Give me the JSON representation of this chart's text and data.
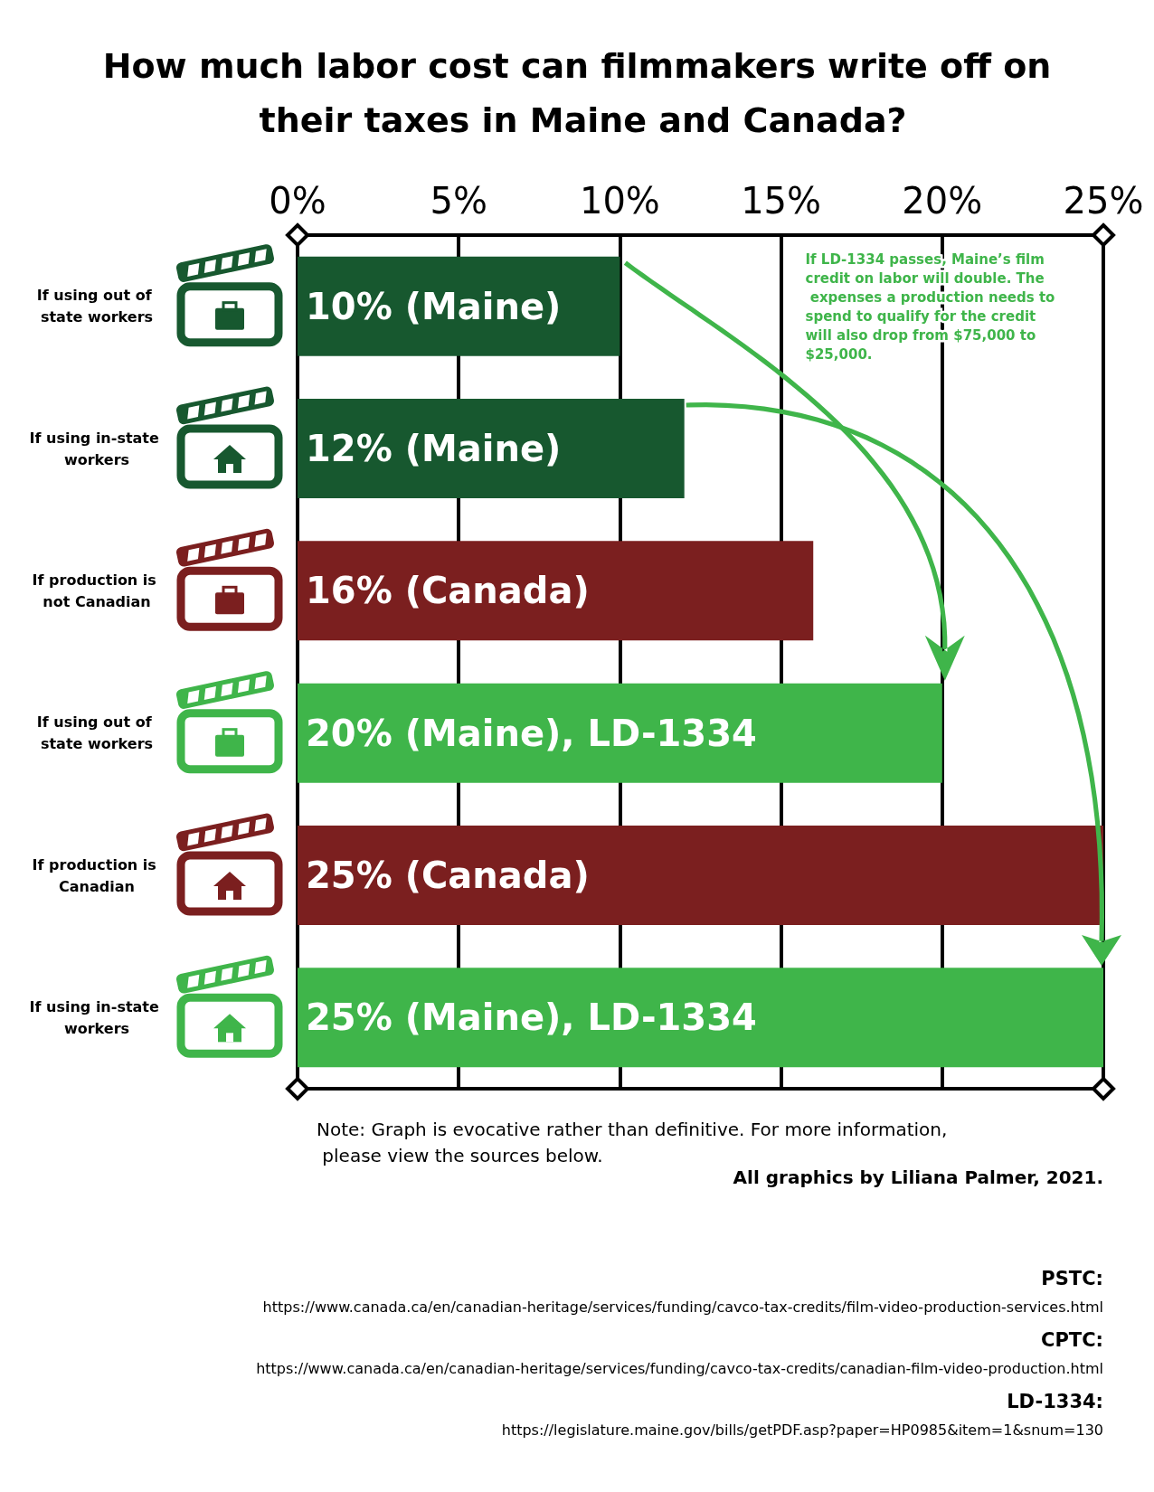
{
  "chart_data": {
    "type": "bar",
    "orientation": "horizontal",
    "title": "How much labor cost can filmmakers write off on their taxes in Maine and Canada?",
    "categories": [
      "If using out of state workers",
      "If using in-state workers",
      "If production is not Canadian",
      "If using out of state workers",
      "If production is Canadian",
      "If using in-state workers"
    ],
    "values": [
      10,
      12,
      16,
      20,
      25,
      25
    ],
    "colors": [
      "#17582f",
      "#17582f",
      "#7b1f1f",
      "#3fb54a",
      "#7b1f1f",
      "#3fb54a"
    ],
    "value_labels": [
      "10% (Maine)",
      "12% (Maine)",
      "16% (Canada)",
      "20% (Maine), LD-1334",
      "25% (Canada)",
      "25% (Maine), LD-1334"
    ],
    "xlim": [
      0,
      25
    ],
    "xticks": [
      {
        "value": 0,
        "label": "0%"
      },
      {
        "value": 5,
        "label": "5%"
      },
      {
        "value": 10,
        "label": "10%"
      },
      {
        "value": 15,
        "label": "15%"
      },
      {
        "value": 20,
        "label": "20%"
      },
      {
        "value": 25,
        "label": "25%"
      }
    ],
    "grid": "x",
    "annotations": [
      "If LD-1334 passes, Maine’s film credit on labor will double. The expenses a production needs to spend to qualify for the credit will also drop from $75,000 to $25,000.",
      "Note: Graph is evocative rather than definitive. For more information, please view the sources below.",
      "All graphics by Liliana Palmer, 2021.",
      "PSTC:",
      "https://www.canada.ca/en/canadian-heritage/services/funding/cavco-tax-credits/film-video-production-services.html",
      "CPTC:",
      "https://www.canada.ca/en/canadian-heritage/services/funding/cavco-tax-credits/canadian-film-video-production.html",
      "LD-1334:",
      "https://legislature.maine.gov/bills/getPDF.asp?paper=HP0985&item=1&snum=130"
    ]
  }
}
